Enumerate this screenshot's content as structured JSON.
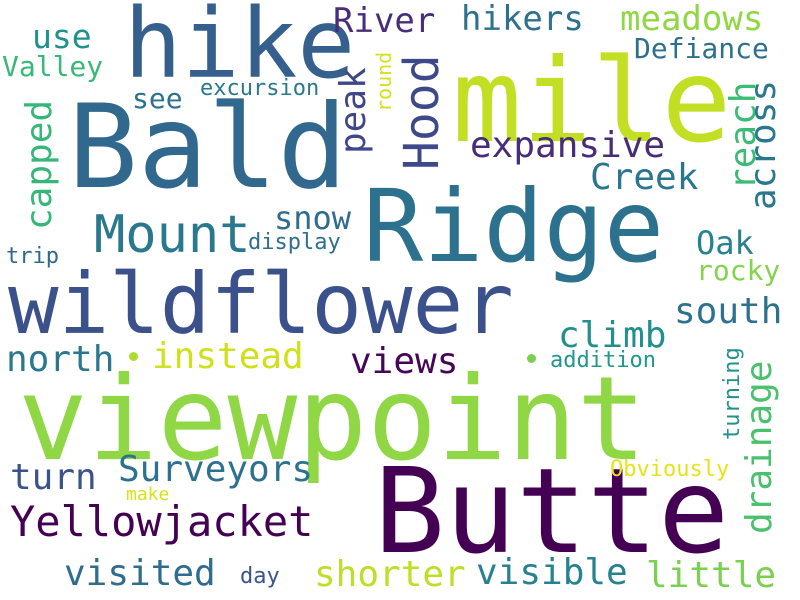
{
  "background": "#ffffff",
  "palette": [
    "#440154",
    "#472f7d",
    "#3b518b",
    "#2c728e",
    "#21918c",
    "#28ae80",
    "#5ec962",
    "#addc30",
    "#fde725"
  ],
  "words": [
    {
      "text": "viewpoint",
      "color": "#8fd744"
    },
    {
      "text": "Ridge",
      "color": "#2c728e"
    },
    {
      "text": "Bald",
      "color": "#31688e"
    },
    {
      "text": "mile",
      "color": "#c2df23"
    },
    {
      "text": "hike",
      "color": "#355f8d"
    },
    {
      "text": "Butte",
      "color": "#440154"
    },
    {
      "text": "wildflower",
      "color": "#3b518b"
    },
    {
      "text": "Yellowjacket",
      "color": "#440154"
    },
    {
      "text": "Mount",
      "color": "#2a788e"
    },
    {
      "text": "instead",
      "color": "#d0e11c"
    },
    {
      "text": "visible",
      "color": "#26828e"
    },
    {
      "text": "Surveyors",
      "color": "#2c728e"
    },
    {
      "text": "shorter",
      "color": "#bddf26"
    },
    {
      "text": "visited",
      "color": "#2f6c8e"
    },
    {
      "text": "expansive",
      "color": "#472c7a"
    },
    {
      "text": "Creek",
      "color": "#2a768e"
    },
    {
      "text": "south",
      "color": "#2c728e"
    },
    {
      "text": "north",
      "color": "#2a788e"
    },
    {
      "text": "little",
      "color": "#7ad151"
    },
    {
      "text": "views",
      "color": "#450559"
    },
    {
      "text": "turn",
      "color": "#3b528b"
    },
    {
      "text": "snow",
      "color": "#2f6c8e"
    },
    {
      "text": "climb",
      "color": "#21908d"
    },
    {
      "text": "hikers",
      "color": "#2d718e"
    },
    {
      "text": "meadows",
      "color": "#90d743"
    },
    {
      "text": "River",
      "color": "#472d7b"
    },
    {
      "text": "use",
      "color": "#20928c"
    },
    {
      "text": "Defiance",
      "color": "#2d708e"
    },
    {
      "text": "Valley",
      "color": "#38b977"
    },
    {
      "text": "see",
      "color": "#2c728e"
    },
    {
      "text": "Oak",
      "color": "#26828e"
    },
    {
      "text": "rocky",
      "color": "#84d44b"
    },
    {
      "text": "excursion",
      "color": "#2a788e"
    },
    {
      "text": "display",
      "color": "#2d708e"
    },
    {
      "text": "trip",
      "color": "#31688e"
    },
    {
      "text": "addition",
      "color": "#1f988b"
    },
    {
      "text": "Obviously",
      "color": "#e5e419"
    },
    {
      "text": "make",
      "color": "#d8e219"
    },
    {
      "text": "day",
      "color": "#3a548c"
    },
    {
      "text": "Hood",
      "color": "#3e4989"
    },
    {
      "text": "peak",
      "color": "#3f4788"
    },
    {
      "text": "capped",
      "color": "#35b779"
    },
    {
      "text": "reach",
      "color": "#3bbb75"
    },
    {
      "text": "across",
      "color": "#2a788e"
    },
    {
      "text": "drainage",
      "color": "#4ac16d"
    },
    {
      "text": "turning",
      "color": "#21918c"
    },
    {
      "text": "round",
      "color": "#d2e21b"
    }
  ],
  "dots": [
    {
      "color": "#addc30"
    },
    {
      "color": "#7ad151"
    }
  ]
}
